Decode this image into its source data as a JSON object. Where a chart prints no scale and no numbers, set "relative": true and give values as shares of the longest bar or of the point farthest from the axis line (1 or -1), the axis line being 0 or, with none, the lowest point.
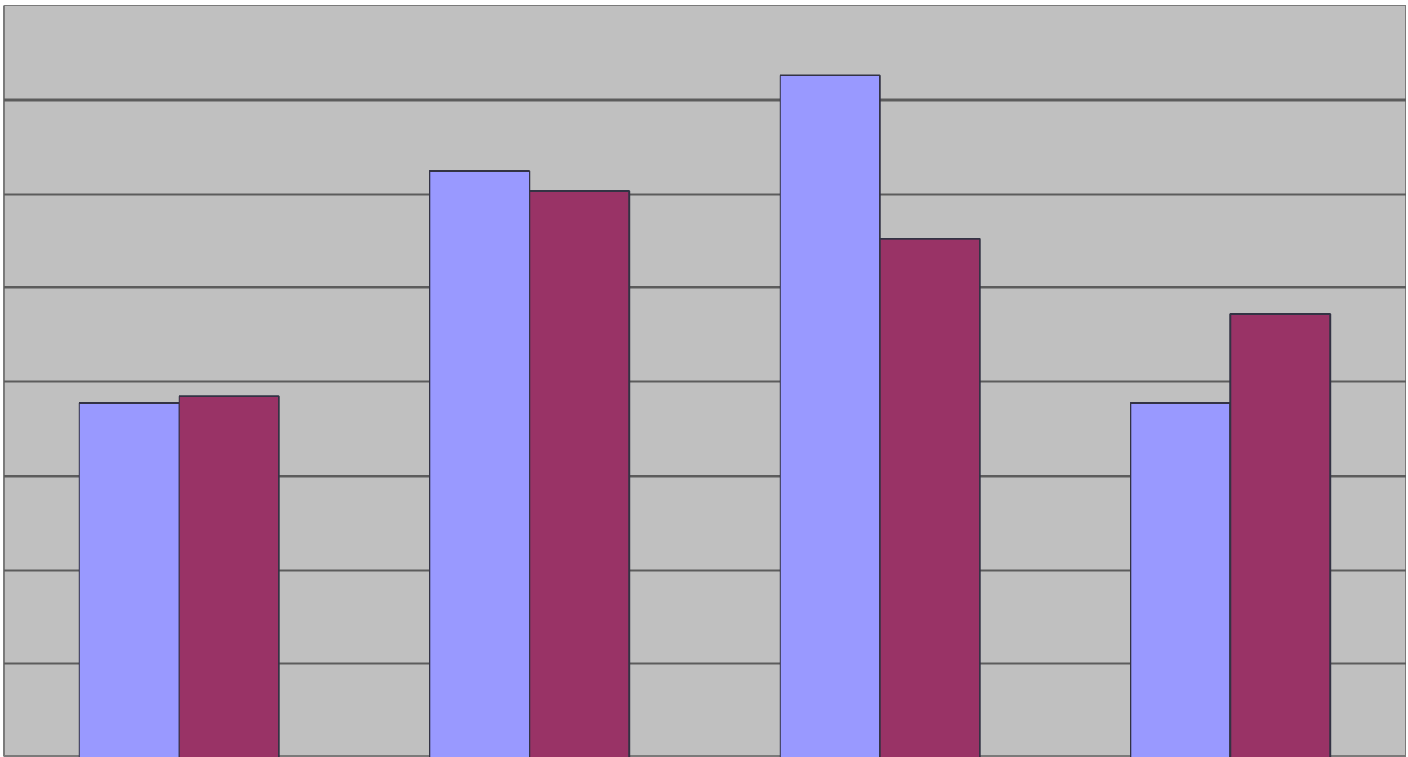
{
  "chart_data": {
    "type": "bar",
    "categories": [
      null,
      null,
      null,
      null
    ],
    "relative": true,
    "grid": "y",
    "series": [
      {
        "color": "#9999ff",
        "values": [
          0.52,
          0.86,
          1,
          0.52
        ]
      },
      {
        "color": "#993366",
        "values": [
          0.53,
          0.83,
          0.76,
          0.65
        ]
      }
    ]
  }
}
